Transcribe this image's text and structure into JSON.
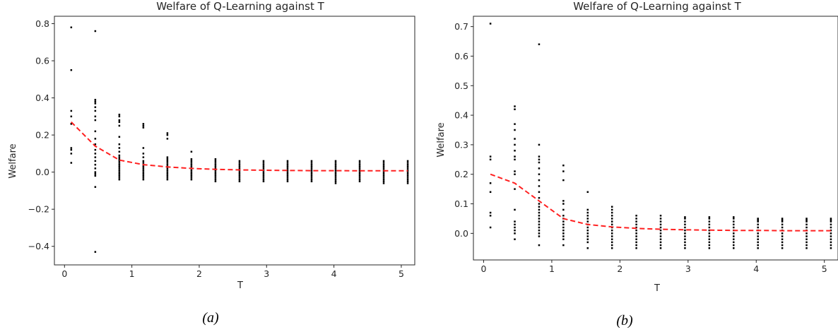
{
  "chart_data": [
    {
      "type": "scatter",
      "title": "Welfare of Q-Learning against T",
      "xlabel": "T",
      "ylabel": "Welfare",
      "caption": "(a)",
      "xlim": [
        -0.15,
        5.2
      ],
      "ylim": [
        -0.5,
        0.84
      ],
      "xticks": [
        0,
        1,
        2,
        3,
        4,
        5
      ],
      "yticks": [
        -0.4,
        -0.2,
        0.0,
        0.2,
        0.4,
        0.6,
        0.8
      ],
      "ytick_labels": [
        "−0.4",
        "−0.2",
        "0.0",
        "0.2",
        "0.4",
        "0.6",
        "0.8"
      ],
      "x_values": [
        0.1,
        0.4568,
        0.8137,
        1.1705,
        1.5274,
        1.8842,
        2.2411,
        2.5979,
        2.9547,
        3.3116,
        3.6684,
        4.0253,
        4.3821,
        4.7389,
        5.0958
      ],
      "scatter_points": [
        {
          "x": 0.1,
          "y": [
            0.78,
            0.55,
            0.33,
            0.3,
            0.26,
            0.13,
            0.12,
            0.1,
            0.05
          ]
        },
        {
          "x": 0.4568,
          "y": [
            0.76,
            0.39,
            0.38,
            0.37,
            0.35,
            0.33,
            0.3,
            0.28,
            0.22,
            0.18,
            0.15,
            0.12,
            0.1,
            0.08,
            0.06,
            0.04,
            0.02,
            0.0,
            -0.01,
            -0.02,
            -0.08,
            -0.43
          ]
        },
        {
          "x": 0.8137,
          "y": [
            0.31,
            0.3,
            0.28,
            0.27,
            0.25,
            0.19,
            0.15,
            0.13,
            0.11,
            0.09,
            0.08,
            0.07,
            0.06,
            0.05,
            0.04,
            0.03,
            0.02,
            0.01,
            0.0,
            -0.01,
            -0.02,
            -0.03,
            -0.04
          ]
        },
        {
          "x": 1.1705,
          "y": [
            0.26,
            0.25,
            0.24,
            0.13,
            0.1,
            0.08,
            0.06,
            0.05,
            0.04,
            0.03,
            0.02,
            0.01,
            0.0,
            -0.01,
            -0.02,
            -0.03,
            -0.04
          ]
        },
        {
          "x": 1.5274,
          "y": [
            0.21,
            0.2,
            0.18,
            0.08,
            0.07,
            0.06,
            0.05,
            0.04,
            0.03,
            0.02,
            0.01,
            0.0,
            -0.01,
            -0.02,
            -0.03,
            -0.04
          ]
        },
        {
          "x": 1.8842,
          "y": [
            0.11,
            0.07,
            0.06,
            0.05,
            0.04,
            0.03,
            0.02,
            0.01,
            0.0,
            -0.01,
            -0.02,
            -0.03,
            -0.04
          ]
        },
        {
          "x": 2.2411,
          "y": [
            0.07,
            0.06,
            0.05,
            0.04,
            0.03,
            0.02,
            0.01,
            0.0,
            -0.01,
            -0.02,
            -0.03,
            -0.04,
            -0.05
          ]
        },
        {
          "x": 2.5979,
          "y": [
            0.06,
            0.05,
            0.04,
            0.03,
            0.02,
            0.01,
            0.0,
            -0.01,
            -0.02,
            -0.03,
            -0.04,
            -0.05
          ]
        },
        {
          "x": 2.9547,
          "y": [
            0.06,
            0.05,
            0.04,
            0.03,
            0.02,
            0.01,
            0.0,
            -0.01,
            -0.02,
            -0.03,
            -0.04,
            -0.05
          ]
        },
        {
          "x": 3.3116,
          "y": [
            0.06,
            0.05,
            0.04,
            0.03,
            0.02,
            0.01,
            0.0,
            -0.01,
            -0.02,
            -0.03,
            -0.04,
            -0.05
          ]
        },
        {
          "x": 3.6684,
          "y": [
            0.06,
            0.05,
            0.04,
            0.03,
            0.02,
            0.01,
            0.0,
            -0.01,
            -0.02,
            -0.03,
            -0.04,
            -0.05
          ]
        },
        {
          "x": 4.0253,
          "y": [
            0.06,
            0.05,
            0.04,
            0.03,
            0.02,
            0.01,
            0.0,
            -0.01,
            -0.02,
            -0.03,
            -0.04,
            -0.05,
            -0.06
          ]
        },
        {
          "x": 4.3821,
          "y": [
            0.06,
            0.05,
            0.04,
            0.03,
            0.02,
            0.01,
            0.0,
            -0.01,
            -0.02,
            -0.03,
            -0.04,
            -0.05
          ]
        },
        {
          "x": 4.7389,
          "y": [
            0.06,
            0.05,
            0.04,
            0.03,
            0.02,
            0.01,
            0.0,
            -0.01,
            -0.02,
            -0.03,
            -0.04,
            -0.05,
            -0.06
          ]
        },
        {
          "x": 5.0958,
          "y": [
            0.06,
            0.05,
            0.04,
            0.03,
            0.02,
            0.01,
            0.0,
            -0.01,
            -0.02,
            -0.03,
            -0.04,
            -0.05,
            -0.06
          ]
        }
      ],
      "mean_line": {
        "color": "#ff2020",
        "style": "dashed",
        "y": [
          0.27,
          0.14,
          0.065,
          0.04,
          0.028,
          0.02,
          0.015,
          0.012,
          0.01,
          0.009,
          0.008,
          0.008,
          0.007,
          0.007,
          0.007
        ]
      },
      "grid": false,
      "colors": {
        "points": "#000000",
        "mean_line": "#ff2020"
      }
    },
    {
      "type": "scatter",
      "title": "Welfare of Q-Learning against T",
      "xlabel": "T",
      "ylabel": "Welfare",
      "caption": "(b)",
      "xlim": [
        -0.15,
        5.2
      ],
      "ylim": [
        -0.09,
        0.735
      ],
      "xticks": [
        0,
        1,
        2,
        3,
        4,
        5
      ],
      "yticks": [
        0.0,
        0.1,
        0.2,
        0.3,
        0.4,
        0.5,
        0.6,
        0.7
      ],
      "ytick_labels": [
        "0.0",
        "0.1",
        "0.2",
        "0.3",
        "0.4",
        "0.5",
        "0.6",
        "0.7"
      ],
      "x_values": [
        0.1,
        0.4568,
        0.8137,
        1.1705,
        1.5274,
        1.8842,
        2.2411,
        2.5979,
        2.9547,
        3.3116,
        3.6684,
        4.0253,
        4.3821,
        4.7389,
        5.0958
      ],
      "scatter_points": [
        {
          "x": 0.1,
          "y": [
            0.71,
            0.26,
            0.25,
            0.17,
            0.14,
            0.07,
            0.06,
            0.02
          ]
        },
        {
          "x": 0.4568,
          "y": [
            0.43,
            0.42,
            0.37,
            0.35,
            0.32,
            0.3,
            0.28,
            0.26,
            0.25,
            0.21,
            0.2,
            0.15,
            0.08,
            0.04,
            0.03,
            0.02,
            0.01,
            0.0,
            -0.02
          ]
        },
        {
          "x": 0.8137,
          "y": [
            0.64,
            0.3,
            0.26,
            0.25,
            0.24,
            0.22,
            0.2,
            0.18,
            0.16,
            0.14,
            0.12,
            0.1,
            0.09,
            0.08,
            0.07,
            0.06,
            0.05,
            0.04,
            0.03,
            0.02,
            0.01,
            0.0,
            -0.01,
            -0.04
          ]
        },
        {
          "x": 1.1705,
          "y": [
            0.23,
            0.21,
            0.18,
            0.11,
            0.1,
            0.08,
            0.06,
            0.05,
            0.04,
            0.03,
            0.02,
            0.01,
            0.0,
            -0.01,
            -0.02,
            -0.04
          ]
        },
        {
          "x": 1.5274,
          "y": [
            0.14,
            0.08,
            0.07,
            0.06,
            0.05,
            0.04,
            0.03,
            0.02,
            0.01,
            0.0,
            -0.01,
            -0.02,
            -0.03,
            -0.05
          ]
        },
        {
          "x": 1.8842,
          "y": [
            0.09,
            0.08,
            0.07,
            0.06,
            0.05,
            0.04,
            0.03,
            0.02,
            0.01,
            0.0,
            -0.01,
            -0.02,
            -0.03,
            -0.04,
            -0.05
          ]
        },
        {
          "x": 2.2411,
          "y": [
            0.06,
            0.05,
            0.04,
            0.03,
            0.02,
            0.01,
            0.0,
            -0.01,
            -0.02,
            -0.03,
            -0.04,
            -0.05
          ]
        },
        {
          "x": 2.5979,
          "y": [
            0.06,
            0.05,
            0.04,
            0.03,
            0.02,
            0.01,
            0.0,
            -0.01,
            -0.02,
            -0.03,
            -0.04,
            -0.05
          ]
        },
        {
          "x": 2.9547,
          "y": [
            0.055,
            0.05,
            0.04,
            0.03,
            0.02,
            0.01,
            0.0,
            -0.01,
            -0.02,
            -0.03,
            -0.04,
            -0.05
          ]
        },
        {
          "x": 3.3116,
          "y": [
            0.055,
            0.05,
            0.04,
            0.03,
            0.02,
            0.01,
            0.0,
            -0.01,
            -0.02,
            -0.03,
            -0.04,
            -0.05
          ]
        },
        {
          "x": 3.6684,
          "y": [
            0.055,
            0.05,
            0.04,
            0.03,
            0.02,
            0.01,
            0.0,
            -0.01,
            -0.02,
            -0.03,
            -0.04,
            -0.05
          ]
        },
        {
          "x": 4.0253,
          "y": [
            0.05,
            0.045,
            0.04,
            0.03,
            0.02,
            0.01,
            0.0,
            -0.01,
            -0.02,
            -0.03,
            -0.04,
            -0.05
          ]
        },
        {
          "x": 4.3821,
          "y": [
            0.05,
            0.045,
            0.04,
            0.03,
            0.02,
            0.01,
            0.0,
            -0.01,
            -0.02,
            -0.03,
            -0.04,
            -0.05
          ]
        },
        {
          "x": 4.7389,
          "y": [
            0.05,
            0.045,
            0.04,
            0.03,
            0.02,
            0.01,
            0.0,
            -0.01,
            -0.02,
            -0.03,
            -0.04,
            -0.05
          ]
        },
        {
          "x": 5.0958,
          "y": [
            0.05,
            0.045,
            0.04,
            0.03,
            0.02,
            0.01,
            0.0,
            -0.01,
            -0.02,
            -0.03,
            -0.04,
            -0.05
          ]
        }
      ],
      "mean_line": {
        "color": "#ff2020",
        "style": "dashed",
        "y": [
          0.2,
          0.17,
          0.11,
          0.05,
          0.03,
          0.022,
          0.017,
          0.014,
          0.012,
          0.011,
          0.01,
          0.01,
          0.009,
          0.009,
          0.009
        ]
      },
      "grid": false,
      "colors": {
        "points": "#000000",
        "mean_line": "#ff2020"
      }
    }
  ]
}
